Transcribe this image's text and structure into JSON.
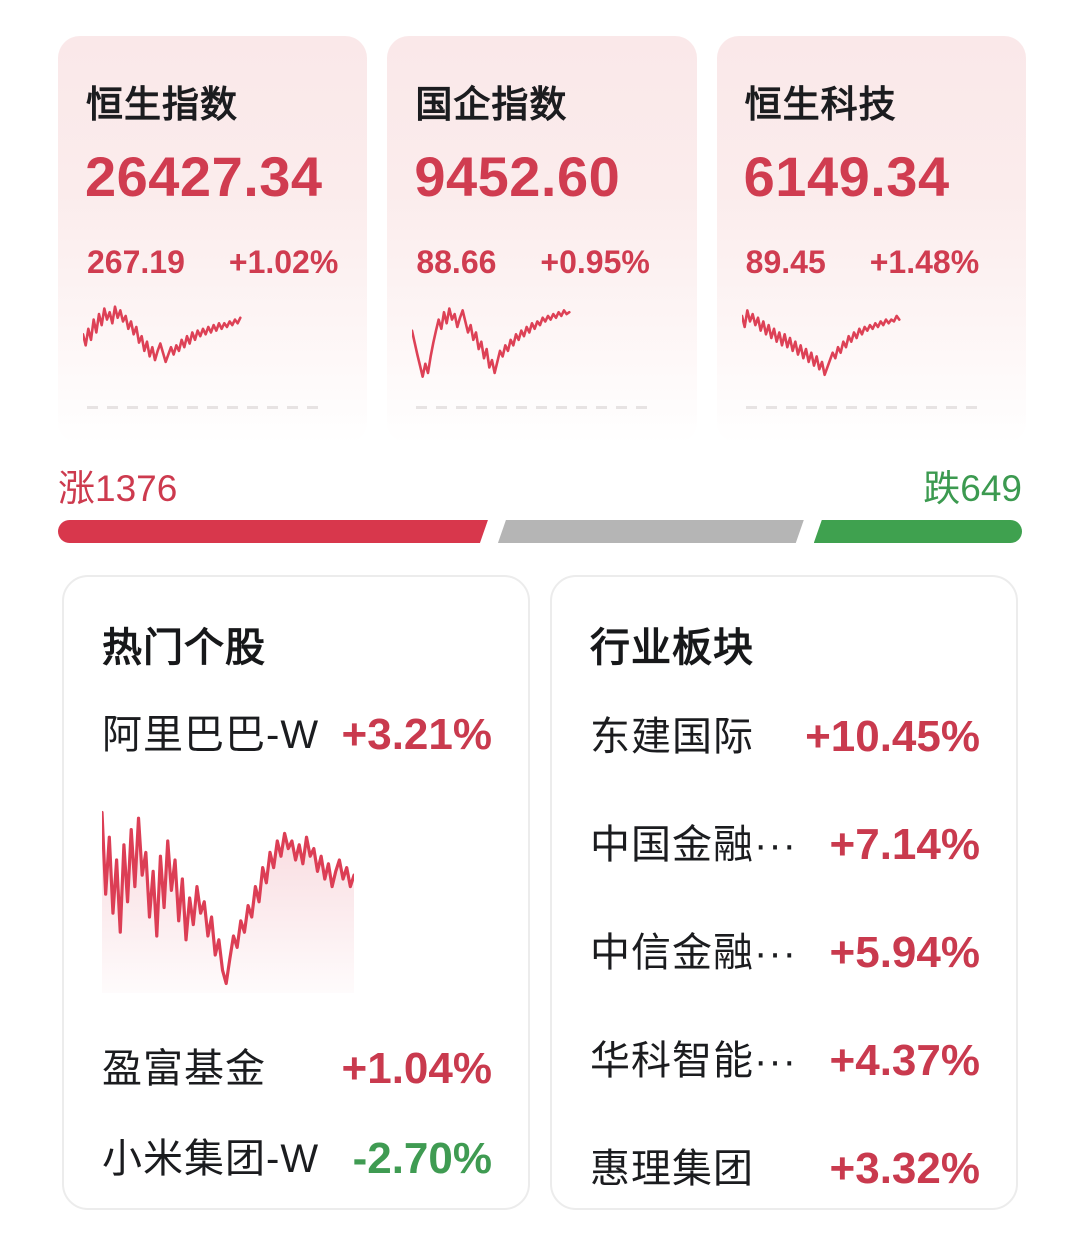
{
  "colors": {
    "up_red": "#d03c50",
    "down_green": "#3c9a50",
    "bar_red": "#d8374c",
    "bar_gray": "#b5b5b5",
    "bar_green": "#3fa14f",
    "card_pink": "#fae8e9",
    "spark_red": "#dd4156"
  },
  "indices": [
    {
      "name": "恒生指数",
      "value": "26427.34",
      "change": "267.19",
      "change_pct": "+1.02%"
    },
    {
      "name": "国企指数",
      "value": "9452.60",
      "change": "88.66",
      "change_pct": "+0.95%"
    },
    {
      "name": "恒生科技",
      "value": "6149.34",
      "change": "89.45",
      "change_pct": "+1.48%"
    }
  ],
  "breadth": {
    "up_label": "涨1376",
    "down_label": "跌649",
    "advancers": 1376,
    "decliners": 649,
    "segments_pct": [
      44.6,
      32.1,
      21.6
    ]
  },
  "hot_stocks": {
    "title": "热门个股",
    "items": [
      {
        "name": "阿里巴巴-W",
        "pct": "+3.21%",
        "dir": "up"
      },
      {
        "name": "盈富基金",
        "pct": "+1.04%",
        "dir": "up"
      },
      {
        "name": "小米集团-W",
        "pct": "-2.70%",
        "dir": "down"
      }
    ]
  },
  "sectors": {
    "title": "行业板块",
    "items": [
      {
        "name": "东建国际",
        "pct": "+10.45%",
        "dir": "up"
      },
      {
        "name": "中国金融···",
        "pct": "+7.14%",
        "dir": "up"
      },
      {
        "name": "中信金融···",
        "pct": "+5.94%",
        "dir": "up"
      },
      {
        "name": "华科智能···",
        "pct": "+4.37%",
        "dir": "up"
      },
      {
        "name": "惠理集团",
        "pct": "+3.32%",
        "dir": "up"
      }
    ]
  },
  "chart_data": [
    {
      "type": "line",
      "label": "恒生指数 分时走势",
      "stroke": "#dd4156",
      "stroke_width": 2.6,
      "area": false,
      "span": 65,
      "points": [
        46,
        58,
        40,
        52,
        30,
        44,
        24,
        36,
        18,
        30,
        22,
        34,
        16,
        28,
        20,
        32,
        26,
        40,
        32,
        46,
        38,
        55,
        48,
        64,
        54,
        70,
        60,
        74,
        64,
        56,
        66,
        76,
        68,
        60,
        68,
        58,
        64,
        52,
        60,
        48,
        56,
        44,
        52,
        42,
        48,
        40,
        46,
        38,
        44,
        36,
        42,
        34,
        40,
        34,
        38,
        32,
        36,
        30,
        34,
        28
      ]
    },
    {
      "type": "line",
      "label": "国企指数 分时走势",
      "stroke": "#dd4156",
      "stroke_width": 2.6,
      "area": false,
      "span": 65,
      "points": [
        42,
        55,
        68,
        80,
        92,
        78,
        88,
        70,
        55,
        42,
        30,
        40,
        22,
        34,
        18,
        30,
        24,
        38,
        28,
        20,
        32,
        44,
        36,
        52,
        44,
        62,
        54,
        72,
        62,
        82,
        74,
        88,
        76,
        64,
        70,
        58,
        64,
        52,
        58,
        46,
        52,
        42,
        48,
        38,
        44,
        34,
        40,
        32,
        36,
        28,
        32,
        26,
        30,
        24,
        28,
        22,
        26,
        20,
        24,
        22
      ]
    },
    {
      "type": "line",
      "label": "恒生科技 分时走势",
      "stroke": "#dd4156",
      "stroke_width": 2.6,
      "area": false,
      "span": 65,
      "points": [
        26,
        38,
        20,
        32,
        24,
        36,
        28,
        42,
        32,
        46,
        36,
        50,
        40,
        54,
        44,
        58,
        46,
        60,
        50,
        64,
        54,
        68,
        58,
        72,
        62,
        76,
        66,
        80,
        70,
        84,
        76,
        90,
        82,
        74,
        66,
        72,
        60,
        66,
        54,
        60,
        48,
        54,
        44,
        50,
        40,
        46,
        38,
        42,
        36,
        40,
        34,
        38,
        32,
        36,
        30,
        34,
        30,
        32,
        26,
        30
      ]
    },
    {
      "type": "line",
      "label": "阿里巴巴-W 分时走势",
      "stroke": "#dc3e55",
      "stroke_width": 3.2,
      "area": true,
      "span": 100,
      "points": [
        5,
        48,
        18,
        58,
        30,
        68,
        22,
        52,
        14,
        44,
        8,
        38,
        26,
        60,
        36,
        70,
        28,
        55,
        20,
        46,
        30,
        62,
        40,
        72,
        50,
        64,
        44,
        58,
        52,
        70,
        60,
        80,
        72,
        88,
        95,
        82,
        70,
        76,
        62,
        68,
        54,
        60,
        44,
        52,
        34,
        42,
        26,
        34,
        20,
        28,
        16,
        24,
        20,
        30,
        22,
        32,
        18,
        28,
        24,
        36,
        28,
        40,
        32,
        44,
        36,
        30,
        40,
        34,
        44,
        38
      ]
    }
  ]
}
